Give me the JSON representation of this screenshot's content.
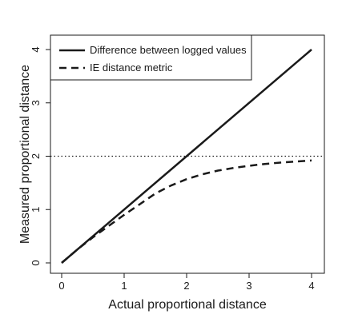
{
  "chart_data": {
    "type": "line",
    "title": "",
    "xlabel": "Actual proportional distance",
    "ylabel": "Measured proportional distance",
    "xlim": [
      0,
      4
    ],
    "ylim": [
      0,
      4
    ],
    "xticks": [
      0,
      1,
      2,
      3,
      4
    ],
    "yticks": [
      0,
      1,
      2,
      3,
      4
    ],
    "grid": false,
    "legend_position": "top-left",
    "series": [
      {
        "name": "Difference between logged values",
        "line_style": "solid",
        "x": [
          0,
          4
        ],
        "y": [
          0,
          4
        ]
      },
      {
        "name": "IE distance metric",
        "line_style": "dashed",
        "x": [
          0,
          0.25,
          0.5,
          0.75,
          1.0,
          1.25,
          1.5,
          1.75,
          2.0,
          2.25,
          2.5,
          2.75,
          3.0,
          3.25,
          3.5,
          3.75,
          4.0
        ],
        "y": [
          0,
          0.25,
          0.48,
          0.69,
          0.9,
          1.1,
          1.3,
          1.45,
          1.57,
          1.66,
          1.73,
          1.78,
          1.82,
          1.855,
          1.88,
          1.9,
          1.92
        ]
      }
    ],
    "reference_lines": [
      {
        "orientation": "horizontal",
        "value": 2,
        "line_style": "dotted"
      }
    ]
  }
}
